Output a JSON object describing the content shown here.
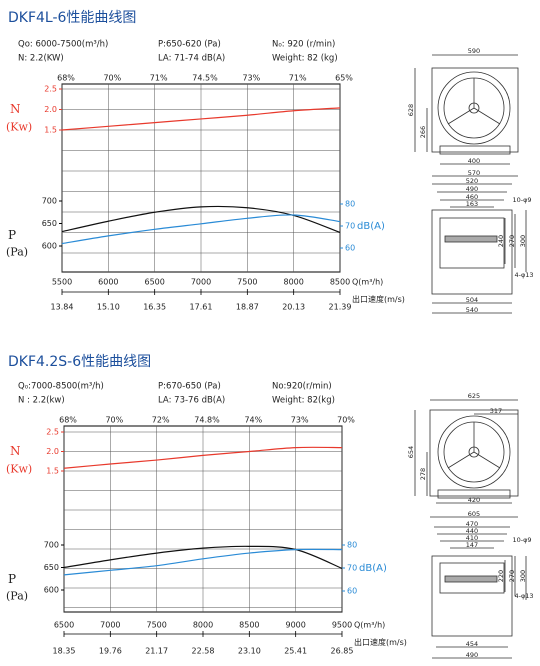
{
  "chart_data": [
    {
      "type": "line",
      "title": "DKF4L-6性能曲线图",
      "specs": [
        "Qo: 6000-7500(m³/h)",
        "P:650-620 (Pa)",
        "N₀: 920 (r/min)",
        "N: 2.2(KW)",
        "LA: 71-74 dB(A)",
        "Weight: 82 (kg)"
      ],
      "efficiency_labels": [
        "68%",
        "70%",
        "71%",
        "74.5%",
        "73%",
        "71%",
        "65%"
      ],
      "x_label": "Q(m³/h)",
      "x2_label": "出口速度(m/s)",
      "xlim": [
        5500,
        8500
      ],
      "xticks": [
        5500,
        6000,
        6500,
        7000,
        7500,
        8000,
        8500
      ],
      "velocity_labels": [
        "13.84",
        "15.10",
        "16.35",
        "17.61",
        "18.87",
        "20.13",
        "21.39"
      ],
      "n_label": "N",
      "n_unit": "(Kw)",
      "n_lim": [
        1.5,
        2.5
      ],
      "n_ticks": [
        1.5,
        {
          "value": 2,
          "label": "2.0"
        },
        2.5
      ],
      "p_label": "P",
      "p_unit": "(Pa)",
      "p_lim": [
        600,
        700
      ],
      "p_ticks": [
        600,
        650,
        700
      ],
      "db_label": "dB(A)",
      "db_lim": [
        60,
        80
      ],
      "db_ticks": [
        60,
        70,
        80
      ],
      "x": [
        5500,
        6000,
        6500,
        7000,
        7500,
        8000,
        8500
      ],
      "series": [
        {
          "axis": "n",
          "color": "#e8392c",
          "values": [
            1.5,
            1.59,
            1.68,
            1.77,
            1.86,
            1.97,
            2.04
          ]
        },
        {
          "axis": "p",
          "color": "#111111",
          "values": [
            632,
            655,
            675,
            687,
            685,
            668,
            630
          ]
        },
        {
          "axis": "db",
          "color": "#2a8bd6",
          "values": [
            62,
            65.5,
            68.5,
            71,
            73.5,
            75,
            72
          ]
        }
      ]
    },
    {
      "type": "line",
      "title": "DKF4.2S-6性能曲线图",
      "specs": [
        "Q₀:7000-8500(m³/h)",
        "P:670-650 (Pa)",
        "No:920(r/min)",
        "N : 2.2(kw)",
        "LA: 73-76 dB(A)",
        "Weight: 82(kg)"
      ],
      "efficiency_labels": [
        "68%",
        "70%",
        "72%",
        "74.8%",
        "74%",
        "73%",
        "70%"
      ],
      "x_label": "Q(m³/h)",
      "x2_label": "出口速度(m/s)",
      "xlim": [
        6500,
        9500
      ],
      "xticks": [
        6500,
        7000,
        7500,
        8000,
        8500,
        9000,
        9500
      ],
      "velocity_labels": [
        "18.35",
        "19.76",
        "21.17",
        "22.58",
        "23.10",
        "25.41",
        "26.85"
      ],
      "n_label": "N",
      "n_unit": "(Kw)",
      "n_lim": [
        1.5,
        2.5
      ],
      "n_ticks": [
        1.5,
        {
          "value": 2,
          "label": "2.0"
        },
        2.5
      ],
      "p_label": "P",
      "p_unit": "(Pa)",
      "p_lim": [
        600,
        700
      ],
      "p_ticks": [
        600,
        650,
        700
      ],
      "db_label": "dB(A)",
      "db_lim": [
        60,
        80
      ],
      "db_ticks": [
        60,
        70,
        80
      ],
      "x": [
        6500,
        7000,
        7500,
        8000,
        8500,
        9000,
        9500
      ],
      "series": [
        {
          "axis": "n",
          "color": "#e8392c",
          "values": [
            1.57,
            1.68,
            1.78,
            1.9,
            2.0,
            2.1,
            2.1
          ]
        },
        {
          "axis": "p",
          "color": "#111111",
          "values": [
            650,
            667,
            682,
            693,
            697,
            690,
            648
          ]
        },
        {
          "axis": "db",
          "color": "#2a8bd6",
          "values": [
            67,
            69,
            71,
            74,
            76.5,
            78,
            78
          ]
        }
      ]
    }
  ],
  "drawings": [
    {
      "labels": [
        "590",
        "628",
        "266",
        "400",
        "570",
        "520",
        "490",
        "460",
        "163",
        "10-φ9",
        "240",
        "270",
        "300",
        "4-φ13",
        "504",
        "540"
      ]
    },
    {
      "labels": [
        "625",
        "317",
        "654",
        "278",
        "420",
        "605",
        "470",
        "440",
        "410",
        "147",
        "10-φ9",
        "220",
        "270",
        "300",
        "4-φ13",
        "454",
        "490"
      ]
    }
  ]
}
